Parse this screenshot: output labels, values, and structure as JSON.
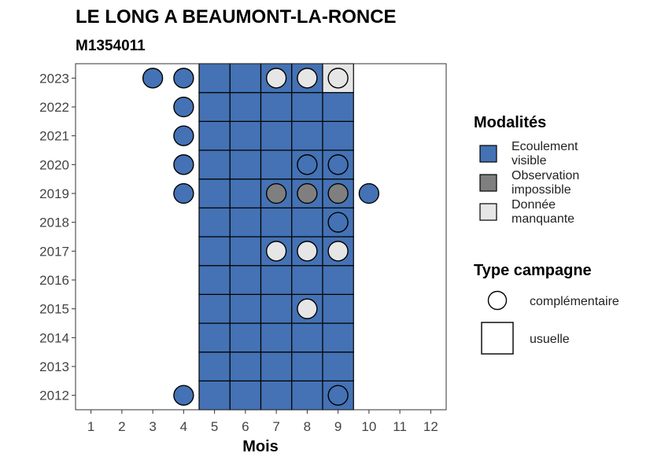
{
  "chart_data": {
    "type": "heatmap",
    "title": "LE LONG A BEAUMONT-LA-RONCE",
    "subtitle": "M1354011",
    "xlabel": "Mois",
    "ylabel": "",
    "x_ticks": [
      1,
      2,
      3,
      4,
      5,
      6,
      7,
      8,
      9,
      10,
      11,
      12
    ],
    "y_ticks": [
      2012,
      2013,
      2014,
      2015,
      2016,
      2017,
      2018,
      2019,
      2020,
      2021,
      2022,
      2023
    ],
    "xlim": [
      0.5,
      12.5
    ],
    "ylim": [
      2011.5,
      2023.5
    ],
    "grid": false,
    "colors": {
      "Ecoulement visible": "#4472b4",
      "Observation impossible": "#7f7f7f",
      "Donnée manquante": "#e6e6e6"
    },
    "legend_modalites": {
      "title": "Modalités",
      "items": [
        {
          "key": "Ecoulement visible",
          "label_lines": [
            "Ecoulement",
            "visible"
          ]
        },
        {
          "key": "Observation impossible",
          "label_lines": [
            "Observation",
            "impossible"
          ]
        },
        {
          "key": "Donnée manquante",
          "label_lines": [
            "Donnée",
            "manquante"
          ]
        }
      ]
    },
    "legend_campagne": {
      "title": "Type campagne",
      "items": [
        {
          "shape": "circle",
          "label": "complémentaire"
        },
        {
          "shape": "square",
          "label": "usuelle"
        }
      ]
    },
    "usuelle": [
      {
        "year": 2012,
        "months": [
          5,
          6,
          7,
          8,
          9
        ],
        "modalite": "Ecoulement visible"
      },
      {
        "year": 2013,
        "months": [
          5,
          6,
          7,
          8,
          9
        ],
        "modalite": "Ecoulement visible"
      },
      {
        "year": 2014,
        "months": [
          5,
          6,
          7,
          8,
          9
        ],
        "modalite": "Ecoulement visible"
      },
      {
        "year": 2015,
        "months": [
          5,
          6,
          7,
          8,
          9
        ],
        "modalite": "Ecoulement visible"
      },
      {
        "year": 2016,
        "months": [
          5,
          6,
          7,
          8,
          9
        ],
        "modalite": "Ecoulement visible"
      },
      {
        "year": 2017,
        "months": [
          5,
          6,
          7,
          8,
          9
        ],
        "modalite": "Ecoulement visible"
      },
      {
        "year": 2018,
        "months": [
          5,
          6,
          7,
          8,
          9
        ],
        "modalite": "Ecoulement visible"
      },
      {
        "year": 2019,
        "months": [
          5,
          6,
          7,
          8,
          9
        ],
        "modalite": "Ecoulement visible"
      },
      {
        "year": 2020,
        "months": [
          5,
          6,
          7,
          8,
          9
        ],
        "modalite": "Ecoulement visible"
      },
      {
        "year": 2021,
        "months": [
          5,
          6,
          7,
          8,
          9
        ],
        "modalite": "Ecoulement visible"
      },
      {
        "year": 2022,
        "months": [
          5,
          6,
          7,
          8,
          9
        ],
        "modalite": "Ecoulement visible"
      },
      {
        "year": 2023,
        "months": [
          5,
          6,
          7,
          8
        ],
        "modalite": "Ecoulement visible"
      },
      {
        "year": 2023,
        "months": [
          9
        ],
        "modalite": "Donnée manquante"
      }
    ],
    "complementaire": [
      {
        "year": 2023,
        "month": 3,
        "modalite": "Ecoulement visible"
      },
      {
        "year": 2023,
        "month": 4,
        "modalite": "Ecoulement visible"
      },
      {
        "year": 2023,
        "month": 7,
        "modalite": "Donnée manquante"
      },
      {
        "year": 2023,
        "month": 8,
        "modalite": "Donnée manquante"
      },
      {
        "year": 2023,
        "month": 9,
        "modalite": "Donnée manquante"
      },
      {
        "year": 2022,
        "month": 4,
        "modalite": "Ecoulement visible"
      },
      {
        "year": 2021,
        "month": 4,
        "modalite": "Ecoulement visible"
      },
      {
        "year": 2020,
        "month": 4,
        "modalite": "Ecoulement visible"
      },
      {
        "year": 2020,
        "month": 8,
        "modalite": "Ecoulement visible"
      },
      {
        "year": 2020,
        "month": 9,
        "modalite": "Ecoulement visible"
      },
      {
        "year": 2019,
        "month": 4,
        "modalite": "Ecoulement visible"
      },
      {
        "year": 2019,
        "month": 7,
        "modalite": "Observation impossible"
      },
      {
        "year": 2019,
        "month": 8,
        "modalite": "Observation impossible"
      },
      {
        "year": 2019,
        "month": 9,
        "modalite": "Observation impossible"
      },
      {
        "year": 2019,
        "month": 10,
        "modalite": "Ecoulement visible"
      },
      {
        "year": 2018,
        "month": 9,
        "modalite": "Ecoulement visible"
      },
      {
        "year": 2017,
        "month": 7,
        "modalite": "Donnée manquante"
      },
      {
        "year": 2017,
        "month": 8,
        "modalite": "Donnée manquante"
      },
      {
        "year": 2017,
        "month": 9,
        "modalite": "Donnée manquante"
      },
      {
        "year": 2015,
        "month": 8,
        "modalite": "Donnée manquante"
      },
      {
        "year": 2012,
        "month": 4,
        "modalite": "Ecoulement visible"
      },
      {
        "year": 2012,
        "month": 9,
        "modalite": "Ecoulement visible"
      }
    ]
  }
}
